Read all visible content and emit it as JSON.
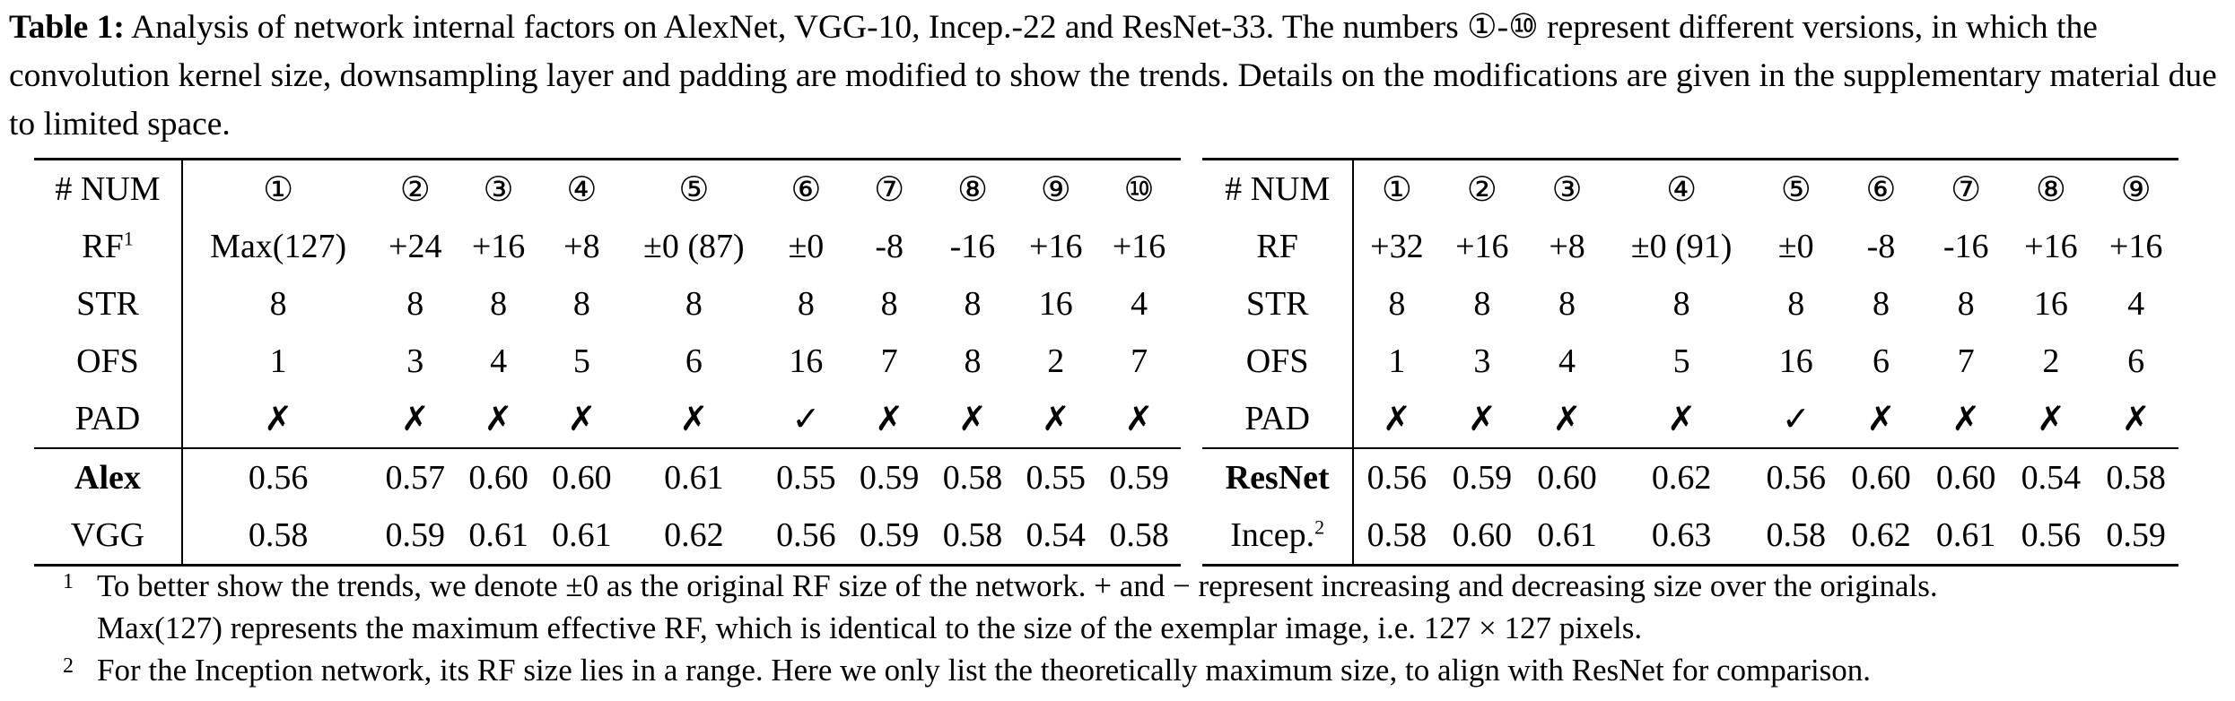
{
  "caption": {
    "label": "Table 1:",
    "text": "Analysis of network internal factors on AlexNet, VGG-10, Incep.-22 and ResNet-33. The numbers ①-⑩ represent different versions, in which the convolution kernel size, downsampling layer and padding are modified to show the trends. Details on the modifications are given in the supplementary material due to limited space."
  },
  "left_table": {
    "header_label": "# NUM",
    "columns": [
      "①",
      "②",
      "③",
      "④",
      "⑤",
      "⑥",
      "⑦",
      "⑧",
      "⑨",
      "⑩"
    ],
    "rows": [
      {
        "label": "RF",
        "sup": "1",
        "values": [
          "Max(127)",
          "+24",
          "+16",
          "+8",
          "±0 (87)",
          "±0",
          "-8",
          "-16",
          "+16",
          "+16"
        ]
      },
      {
        "label": "STR",
        "sup": "",
        "values": [
          "8",
          "8",
          "8",
          "8",
          "8",
          "8",
          "8",
          "8",
          "16",
          "4"
        ]
      },
      {
        "label": "OFS",
        "sup": "",
        "values": [
          "1",
          "3",
          "4",
          "5",
          "6",
          "16",
          "7",
          "8",
          "2",
          "7"
        ]
      },
      {
        "label": "PAD",
        "sup": "",
        "values": [
          "✗",
          "✗",
          "✗",
          "✗",
          "✗",
          "✓",
          "✗",
          "✗",
          "✗",
          "✗"
        ]
      }
    ],
    "models": [
      {
        "label": "Alex",
        "sup": "",
        "values": [
          "0.56",
          "0.57",
          "0.60",
          "0.60",
          "0.61",
          "0.55",
          "0.59",
          "0.58",
          "0.55",
          "0.59"
        ]
      },
      {
        "label": "VGG",
        "sup": "",
        "values": [
          "0.58",
          "0.59",
          "0.61",
          "0.61",
          "0.62",
          "0.56",
          "0.59",
          "0.58",
          "0.54",
          "0.58"
        ]
      }
    ]
  },
  "right_table": {
    "header_label": "# NUM",
    "columns": [
      "①",
      "②",
      "③",
      "④",
      "⑤",
      "⑥",
      "⑦",
      "⑧",
      "⑨"
    ],
    "rows": [
      {
        "label": "RF",
        "sup": "",
        "values": [
          "+32",
          "+16",
          "+8",
          "±0 (91)",
          "±0",
          "-8",
          "-16",
          "+16",
          "+16"
        ]
      },
      {
        "label": "STR",
        "sup": "",
        "values": [
          "8",
          "8",
          "8",
          "8",
          "8",
          "8",
          "8",
          "16",
          "4"
        ]
      },
      {
        "label": "OFS",
        "sup": "",
        "values": [
          "1",
          "3",
          "4",
          "5",
          "16",
          "6",
          "7",
          "2",
          "6"
        ]
      },
      {
        "label": "PAD",
        "sup": "",
        "values": [
          "✗",
          "✗",
          "✗",
          "✗",
          "✓",
          "✗",
          "✗",
          "✗",
          "✗"
        ]
      }
    ],
    "models": [
      {
        "label": "ResNet",
        "sup": "",
        "values": [
          "0.56",
          "0.59",
          "0.60",
          "0.62",
          "0.56",
          "0.60",
          "0.60",
          "0.54",
          "0.58"
        ]
      },
      {
        "label": "Incep.",
        "sup": "2",
        "values": [
          "0.58",
          "0.60",
          "0.61",
          "0.63",
          "0.58",
          "0.62",
          "0.61",
          "0.56",
          "0.59"
        ]
      }
    ]
  },
  "footnotes": [
    {
      "mark": "1",
      "lines": [
        "To better show the trends, we denote ±0 as the original RF size of the network. + and − represent increasing and decreasing size over the originals.",
        "Max(127) represents the maximum effective RF, which is identical to the size of the exemplar image, i.e. 127 × 127 pixels."
      ]
    },
    {
      "mark": "2",
      "lines": [
        "For the Inception network, its RF size lies in a range. Here we only list the theoretically maximum size, to align with ResNet for comparison."
      ]
    }
  ]
}
